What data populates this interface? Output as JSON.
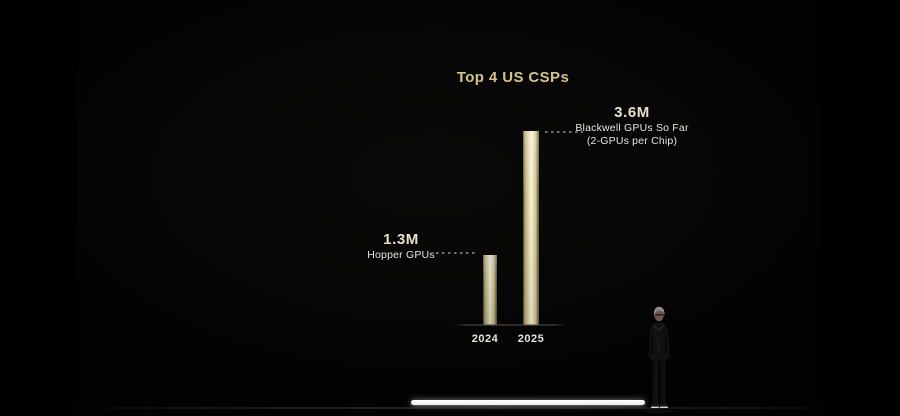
{
  "colors": {
    "background": "#000000",
    "title_gold": "#d2c38b",
    "value_text": "#e6dfc9",
    "body_text": "#e6e4dc",
    "bar_light": "#f6f2da",
    "bar_mid": "#e9e1b8",
    "bar_dark": "#5d5132",
    "bar_deep": "#4a3f26",
    "dash": "#95938b",
    "light_strip": "#ededed"
  },
  "chart_data": {
    "type": "bar",
    "title": "Top 4 US CSPs",
    "categories": [
      "2024",
      "2025"
    ],
    "values": [
      1.3,
      3.6
    ],
    "value_unit": "M GPUs",
    "ylim": [
      0,
      3.6
    ],
    "grid": false,
    "legend": "none",
    "bar_color_stops": [
      "#4a3f26",
      "#e9e1b8",
      "#f6f2da",
      "#5d5132"
    ],
    "annotations": [
      {
        "category": "2024",
        "value": "1.3M",
        "label": "Hopper GPUs",
        "sub_label": ""
      },
      {
        "category": "2025",
        "value": "3.6M",
        "label": "Blackwell GPUs So Far",
        "sub_label": "(2-GPUs per Chip)"
      }
    ]
  }
}
